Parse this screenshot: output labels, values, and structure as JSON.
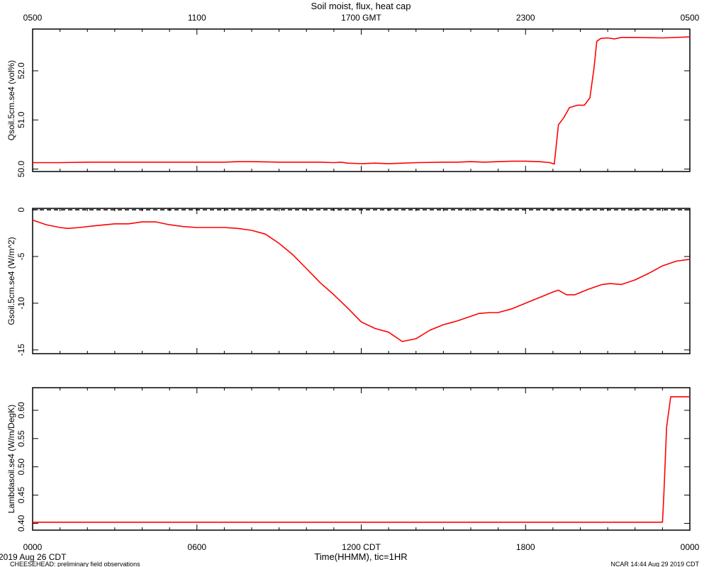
{
  "title": "Soil moist, flux, heat cap",
  "footer": {
    "date_label": "2019 Aug 26 CDT",
    "project": "CHEESEHEAD: preliminary field observations",
    "stamp": "NCAR 14:44 Aug 29 2019 CDT",
    "xlabel": "Time(HHMM), tic=1HR"
  },
  "chart_data": [
    {
      "type": "line",
      "name": "Qsoil",
      "ylabel": "Qsoil.5cm.se4 (vol%)",
      "ylim": [
        49.95,
        52.85
      ],
      "yticks": [
        "50.0",
        "51.0",
        "52.0"
      ],
      "ytick_values": [
        50.0,
        51.0,
        52.0
      ],
      "top_axis_ticks": [
        "0500",
        "1100",
        "1700 GMT",
        "2300",
        "0500"
      ],
      "xlim": [
        0,
        24
      ],
      "zero_line": false,
      "color": "#ff0000",
      "points": [
        [
          0,
          50.13
        ],
        [
          1,
          50.13
        ],
        [
          2,
          50.14
        ],
        [
          3,
          50.14
        ],
        [
          4,
          50.14
        ],
        [
          5,
          50.14
        ],
        [
          6,
          50.14
        ],
        [
          7,
          50.14
        ],
        [
          7.5,
          50.15
        ],
        [
          8,
          50.15
        ],
        [
          9,
          50.14
        ],
        [
          10,
          50.14
        ],
        [
          10.5,
          50.14
        ],
        [
          11,
          50.13
        ],
        [
          11.25,
          50.14
        ],
        [
          11.5,
          50.12
        ],
        [
          12,
          50.11
        ],
        [
          12.5,
          50.12
        ],
        [
          13,
          50.11
        ],
        [
          13.5,
          50.12
        ],
        [
          14,
          50.13
        ],
        [
          15,
          50.14
        ],
        [
          15.5,
          50.14
        ],
        [
          16,
          50.15
        ],
        [
          16.5,
          50.14
        ],
        [
          17,
          50.15
        ],
        [
          17.5,
          50.16
        ],
        [
          18,
          50.16
        ],
        [
          18.5,
          50.15
        ],
        [
          18.9,
          50.13
        ],
        [
          19.05,
          50.1
        ],
        [
          19.2,
          50.9
        ],
        [
          19.4,
          51.05
        ],
        [
          19.6,
          51.25
        ],
        [
          19.9,
          51.3
        ],
        [
          20.15,
          51.3
        ],
        [
          20.35,
          51.45
        ],
        [
          20.5,
          52.05
        ],
        [
          20.6,
          52.6
        ],
        [
          20.75,
          52.66
        ],
        [
          21,
          52.67
        ],
        [
          21.25,
          52.65
        ],
        [
          21.5,
          52.68
        ],
        [
          22,
          52.68
        ],
        [
          23,
          52.67
        ],
        [
          24,
          52.69
        ]
      ]
    },
    {
      "type": "line",
      "name": "Gsoil",
      "ylabel": "Gsoil.5cm.se4 (W/m^2)",
      "ylim": [
        -15.4,
        0.15
      ],
      "yticks": [
        "0",
        "-5",
        "-10",
        "-15"
      ],
      "ytick_values": [
        0,
        -5,
        -10,
        -15
      ],
      "xlim": [
        0,
        24
      ],
      "zero_line": true,
      "color": "#ff0000",
      "points": [
        [
          0,
          -1.1
        ],
        [
          0.5,
          -1.6
        ],
        [
          1,
          -1.9
        ],
        [
          1.3,
          -2.0
        ],
        [
          1.7,
          -1.9
        ],
        [
          2.3,
          -1.7
        ],
        [
          3,
          -1.5
        ],
        [
          3.5,
          -1.5
        ],
        [
          4,
          -1.3
        ],
        [
          4.5,
          -1.3
        ],
        [
          5,
          -1.6
        ],
        [
          5.5,
          -1.8
        ],
        [
          6,
          -1.9
        ],
        [
          7,
          -1.9
        ],
        [
          7.5,
          -2.0
        ],
        [
          8,
          -2.2
        ],
        [
          8.5,
          -2.6
        ],
        [
          9,
          -3.6
        ],
        [
          9.5,
          -4.8
        ],
        [
          10,
          -6.3
        ],
        [
          10.5,
          -7.8
        ],
        [
          11,
          -9.1
        ],
        [
          11.5,
          -10.5
        ],
        [
          12,
          -12.0
        ],
        [
          12.5,
          -12.7
        ],
        [
          13,
          -13.1
        ],
        [
          13.5,
          -14.1
        ],
        [
          14,
          -13.8
        ],
        [
          14.5,
          -12.9
        ],
        [
          15,
          -12.3
        ],
        [
          15.5,
          -11.9
        ],
        [
          16,
          -11.4
        ],
        [
          16.3,
          -11.1
        ],
        [
          16.7,
          -11.0
        ],
        [
          17,
          -11.0
        ],
        [
          17.5,
          -10.6
        ],
        [
          18,
          -10.0
        ],
        [
          18.5,
          -9.4
        ],
        [
          19,
          -8.8
        ],
        [
          19.2,
          -8.6
        ],
        [
          19.5,
          -9.1
        ],
        [
          19.8,
          -9.1
        ],
        [
          20.3,
          -8.5
        ],
        [
          20.8,
          -8.0
        ],
        [
          21.1,
          -7.9
        ],
        [
          21.5,
          -8.0
        ],
        [
          22,
          -7.5
        ],
        [
          22.5,
          -6.8
        ],
        [
          23,
          -6.0
        ],
        [
          23.5,
          -5.5
        ],
        [
          24,
          -5.3
        ]
      ]
    },
    {
      "type": "line",
      "name": "Lambdasoil",
      "ylabel": "Lambdasoil.se4 (W/m/DegK)",
      "ylim": [
        0.388,
        0.64
      ],
      "yticks": [
        "0.40",
        "0.45",
        "0.50",
        "0.55",
        "0.60"
      ],
      "ytick_values": [
        0.4,
        0.45,
        0.5,
        0.55,
        0.6
      ],
      "xticks": [
        "0000",
        "0600",
        "1200 CDT",
        "1800",
        "0000"
      ],
      "xlim": [
        0,
        24
      ],
      "zero_line": false,
      "color": "#ff0000",
      "points": [
        [
          0,
          0.402
        ],
        [
          23.0,
          0.402
        ],
        [
          23.05,
          0.45
        ],
        [
          23.15,
          0.57
        ],
        [
          23.3,
          0.624
        ],
        [
          24,
          0.624
        ]
      ]
    }
  ]
}
